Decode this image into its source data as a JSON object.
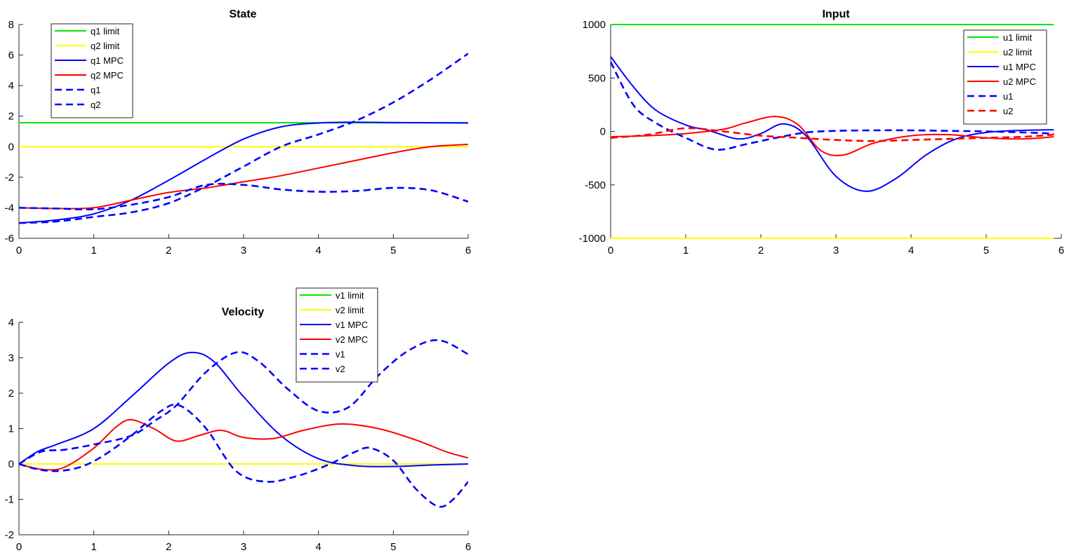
{
  "chart_data": [
    {
      "type": "line",
      "title": "State",
      "xlabel": "",
      "ylabel": "",
      "xlim": [
        0,
        6
      ],
      "ylim": [
        -6,
        8
      ],
      "xticks": [
        0,
        1,
        2,
        3,
        4,
        5,
        6
      ],
      "yticks": [
        -6,
        -4,
        -2,
        0,
        2,
        4,
        6,
        8
      ],
      "legend_position": "top-left",
      "series": [
        {
          "name": "q1 limit",
          "color": "#00e600",
          "style": "solid",
          "x": [
            0,
            6
          ],
          "y": [
            1.57,
            1.57
          ]
        },
        {
          "name": "q2 limit",
          "color": "#ffff00",
          "style": "solid",
          "x": [
            0,
            6
          ],
          "y": [
            0,
            0
          ]
        },
        {
          "name": "q1 MPC",
          "color": "#0000ff",
          "style": "solid",
          "x": [
            0,
            0.5,
            1,
            1.5,
            2,
            2.5,
            3,
            3.5,
            4,
            4.5,
            5,
            5.5,
            6
          ],
          "y": [
            -5,
            -4.8,
            -4.4,
            -3.5,
            -2.2,
            -0.8,
            0.5,
            1.3,
            1.55,
            1.6,
            1.58,
            1.57,
            1.55
          ]
        },
        {
          "name": "q2 MPC",
          "color": "#ff0000",
          "style": "solid",
          "x": [
            0,
            0.5,
            1,
            1.5,
            2,
            2.5,
            3,
            3.5,
            4,
            4.5,
            5,
            5.5,
            6
          ],
          "y": [
            -4,
            -4.05,
            -4,
            -3.5,
            -3,
            -2.7,
            -2.3,
            -1.9,
            -1.4,
            -0.9,
            -0.4,
            0,
            0.15
          ]
        },
        {
          "name": "q1",
          "color": "#0000ff",
          "style": "dashed",
          "x": [
            0,
            0.5,
            1,
            1.5,
            2,
            2.5,
            3,
            3.5,
            4,
            4.5,
            5,
            5.5,
            6
          ],
          "y": [
            -5,
            -4.9,
            -4.6,
            -4.3,
            -3.7,
            -2.6,
            -1.3,
            0,
            0.8,
            1.7,
            2.9,
            4.4,
            6.1
          ]
        },
        {
          "name": "q2",
          "color": "#0000ff",
          "style": "dashed",
          "x": [
            0,
            0.5,
            1,
            1.5,
            2,
            2.5,
            3,
            3.5,
            4,
            4.5,
            5,
            5.5,
            6
          ],
          "y": [
            -4,
            -4.05,
            -4.1,
            -3.8,
            -3.3,
            -2.5,
            -2.5,
            -2.8,
            -2.95,
            -2.9,
            -2.7,
            -2.85,
            -3.6
          ]
        }
      ]
    },
    {
      "type": "line",
      "title": "Input",
      "xlabel": "",
      "ylabel": "",
      "xlim": [
        0,
        6
      ],
      "ylim": [
        -1000,
        1000
      ],
      "xticks": [
        0,
        1,
        2,
        3,
        4,
        5,
        6
      ],
      "yticks": [
        -1000,
        -500,
        0,
        500,
        1000
      ],
      "legend_position": "top-right",
      "series": [
        {
          "name": "u1 limit",
          "color": "#00e600",
          "style": "solid",
          "x": [
            0,
            5.9
          ],
          "y": [
            1000,
            1000
          ]
        },
        {
          "name": "u2 limit",
          "color": "#ffff00",
          "style": "solid",
          "x": [
            0,
            5.9
          ],
          "y": [
            -1000,
            -1000
          ]
        },
        {
          "name": "u1 MPC",
          "color": "#0000ff",
          "style": "solid",
          "x": [
            0,
            0.3,
            0.6,
            1,
            1.3,
            1.7,
            2,
            2.3,
            2.6,
            3,
            3.4,
            3.8,
            4.2,
            4.6,
            5,
            5.5,
            5.9
          ],
          "y": [
            700,
            420,
            200,
            60,
            10,
            -70,
            -20,
            70,
            -40,
            -420,
            -560,
            -440,
            -220,
            -70,
            -10,
            10,
            15
          ]
        },
        {
          "name": "u2 MPC",
          "color": "#ff0000",
          "style": "solid",
          "x": [
            0,
            0.5,
            1,
            1.5,
            1.8,
            2.2,
            2.5,
            2.8,
            3.1,
            3.5,
            4,
            4.5,
            5,
            5.5,
            5.9
          ],
          "y": [
            -50,
            -40,
            -20,
            20,
            80,
            140,
            60,
            -180,
            -220,
            -110,
            -40,
            -30,
            -60,
            -70,
            -50
          ]
        },
        {
          "name": "u1",
          "color": "#0000ff",
          "style": "dashed",
          "x": [
            0,
            0.3,
            0.6,
            1,
            1.4,
            1.8,
            2.2,
            2.6,
            3,
            3.5,
            4,
            4.5,
            5,
            5.5,
            5.9
          ],
          "y": [
            650,
            250,
            80,
            -60,
            -170,
            -120,
            -60,
            -10,
            5,
            10,
            10,
            5,
            0,
            -10,
            -20
          ]
        },
        {
          "name": "u2",
          "color": "#ff0000",
          "style": "dashed",
          "x": [
            0,
            0.5,
            1,
            1.5,
            2,
            2.5,
            3,
            3.5,
            4,
            4.5,
            5,
            5.5,
            5.9
          ],
          "y": [
            -60,
            -30,
            30,
            0,
            -40,
            -60,
            -80,
            -90,
            -80,
            -70,
            -60,
            -50,
            -30
          ]
        }
      ]
    },
    {
      "type": "line",
      "title": "Velocity",
      "xlabel": "",
      "ylabel": "",
      "xlim": [
        0,
        6
      ],
      "ylim": [
        -2,
        4
      ],
      "xticks": [
        0,
        1,
        2,
        3,
        4,
        5,
        6
      ],
      "yticks": [
        -2,
        -1,
        0,
        1,
        2,
        3,
        4
      ],
      "legend_position": "top-center",
      "series": [
        {
          "name": "v1 limit",
          "color": "#00e600",
          "style": "solid",
          "x": [
            0,
            6
          ],
          "y": [
            0,
            0
          ]
        },
        {
          "name": "v2 limit",
          "color": "#ffff00",
          "style": "solid",
          "x": [
            0,
            6
          ],
          "y": [
            0,
            0
          ]
        },
        {
          "name": "v1 MPC",
          "color": "#0000ff",
          "style": "solid",
          "x": [
            0,
            0.25,
            0.5,
            1,
            1.5,
            2,
            2.3,
            2.6,
            3,
            3.5,
            4,
            4.5,
            5,
            5.5,
            6
          ],
          "y": [
            0,
            0.35,
            0.55,
            1.0,
            1.9,
            2.85,
            3.15,
            2.9,
            1.9,
            0.8,
            0.15,
            -0.05,
            -0.07,
            -0.03,
            0
          ]
        },
        {
          "name": "v2 MPC",
          "color": "#ff0000",
          "style": "solid",
          "x": [
            0,
            0.3,
            0.6,
            1,
            1.3,
            1.5,
            1.8,
            2.1,
            2.4,
            2.7,
            3,
            3.4,
            3.8,
            4.3,
            4.8,
            5.3,
            5.7,
            6
          ],
          "y": [
            0,
            -0.15,
            -0.1,
            0.45,
            1.05,
            1.25,
            1.0,
            0.65,
            0.8,
            0.95,
            0.75,
            0.72,
            0.95,
            1.13,
            1.0,
            0.68,
            0.35,
            0.17
          ]
        },
        {
          "name": "v1",
          "color": "#0000ff",
          "style": "dashed",
          "x": [
            0,
            0.3,
            0.6,
            1,
            1.5,
            1.8,
            2.1,
            2.5,
            2.9,
            3.2,
            3.6,
            4,
            4.4,
            4.8,
            5.2,
            5.6,
            6
          ],
          "y": [
            0,
            0.35,
            0.4,
            0.55,
            0.8,
            1.2,
            1.65,
            2.6,
            3.15,
            2.9,
            2.1,
            1.5,
            1.6,
            2.5,
            3.2,
            3.5,
            3.1
          ]
        },
        {
          "name": "v2",
          "color": "#0000ff",
          "style": "dashed",
          "x": [
            0,
            0.25,
            0.5,
            0.8,
            1.1,
            1.5,
            1.9,
            2.15,
            2.5,
            2.9,
            3.3,
            3.7,
            4.1,
            4.5,
            4.7,
            5,
            5.3,
            5.6,
            5.8,
            6
          ],
          "y": [
            0,
            -0.15,
            -0.2,
            -0.1,
            0.2,
            0.8,
            1.5,
            1.65,
            1.0,
            -0.2,
            -0.5,
            -0.35,
            -0.05,
            0.35,
            0.45,
            0.1,
            -0.7,
            -1.2,
            -1.0,
            -0.5
          ]
        }
      ]
    }
  ]
}
